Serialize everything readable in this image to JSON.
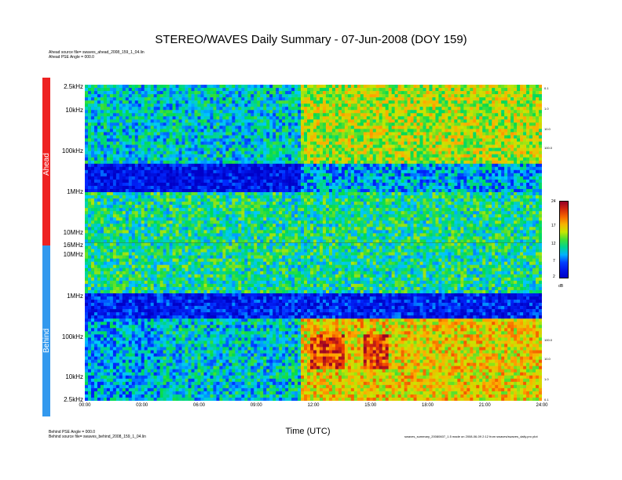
{
  "title": "STEREO/WAVES Daily Summary - 07-Jun-2008 (DOY 159)",
  "header_notes": {
    "ahead_source": "Ahead source file= swaves_ahead_2008_159_1_04.lin",
    "ahead_pse": "Ahead PSE Angle = 000.0"
  },
  "footer_notes": {
    "behind_pse": "Behind PSE Angle = 000.0",
    "behind_source": "Behind source file= swaves_behind_2008_159_1_04.lin",
    "credit": "swaves_summary_20080607_1.5 made on 2008-06-09 2:12 from swaves/swaves_daily.pro plot"
  },
  "side_labels": {
    "ahead": "Ahead",
    "behind": "Behind"
  },
  "colors": {
    "ahead_bar": "#ee2222",
    "behind_bar": "#3399ee"
  },
  "chart_data": {
    "type": "heatmap",
    "xlabel": "Time (UTC)",
    "x_ticks": [
      "00:00",
      "03:00",
      "06:00",
      "09:00",
      "12:00",
      "15:00",
      "18:00",
      "21:00",
      "24:00"
    ],
    "x_range_hours": [
      0,
      24
    ],
    "ahead_panel": {
      "y_ticks": [
        "2.5kHz",
        "10kHz",
        "100kHz",
        "1MHz",
        "10MHz",
        "16MHz"
      ],
      "right_ticks": [
        "0.1",
        "1.0",
        "10.0",
        "100.0"
      ]
    },
    "behind_panel": {
      "y_ticks": [
        "16MHz",
        "10MHz",
        "1MHz",
        "100kHz",
        "10kHz",
        "2.5kHz"
      ],
      "right_ticks": [
        "100.0",
        "10.0",
        "1.0",
        "0.1"
      ]
    },
    "colorbar": {
      "ticks": [
        "24",
        "17",
        "12",
        "7",
        "2"
      ],
      "unit": "dB",
      "range": [
        2,
        24
      ]
    }
  }
}
